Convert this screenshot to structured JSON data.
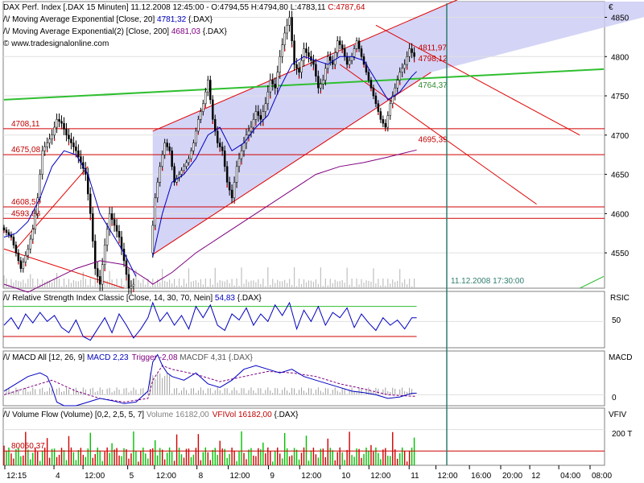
{
  "chart_data": [
    {
      "panel": "price",
      "type": "candlestick",
      "header": {
        "line1_prefix": "DAX Perf. Index [.DAX  15 Minuten] 11.12.2008 12:45:00 - O:4794,55 H:4794,80 L:4783,11 ",
        "line1_close": "C:4787,64",
        "line2_prefix": "/\\/ Moving Average Exponential [Close, 20] ",
        "line2_value": "4781,32",
        "line2_suffix": " {.DAX}",
        "line3_prefix": "/\\/ Moving Average Exponential(2) [Close, 200] ",
        "line3_value": "4681,03",
        "line3_suffix": " {.DAX}",
        "line4": "© www.tradesignalonline.com"
      },
      "currency_symbol": "€",
      "ylim": [
        4505,
        4870
      ],
      "y_ticks": [
        "4550",
        "4600",
        "4650",
        "4700",
        "4750",
        "4800",
        "4850"
      ],
      "x_ticks": [
        "12:15",
        "4",
        "12:00",
        "5",
        "12:00",
        "8",
        "12:00",
        "9",
        "12:00",
        "10",
        "12:00",
        "11",
        "12:00",
        "16:00",
        "20:00",
        "12",
        "04:00",
        "08:00"
      ],
      "horizontal_levels": [
        {
          "value": 4708.11,
          "label": "4708,11"
        },
        {
          "value": 4675.08,
          "label": "4675,08"
        },
        {
          "value": 4608.55,
          "label": "4608,55"
        },
        {
          "value": 4593.88,
          "label": "4593,88"
        }
      ],
      "price_labels": [
        {
          "value": 4811.97,
          "label": "4811,97"
        },
        {
          "value": 4798.12,
          "label": "4798,12"
        },
        {
          "value": 4764.37,
          "label": "4764,37"
        },
        {
          "value": 4695.39,
          "label": "4695,39"
        }
      ],
      "vertical_marker_label": "11.12.2008 17:30:00",
      "close_path": [
        [
          0,
          4582
        ],
        [
          4,
          4570
        ],
        [
          8,
          4530
        ],
        [
          11,
          4555
        ],
        [
          13,
          4580
        ],
        [
          15,
          4620
        ],
        [
          17,
          4680
        ],
        [
          19,
          4690
        ],
        [
          21,
          4700
        ],
        [
          23,
          4720
        ],
        [
          25,
          4715
        ],
        [
          27,
          4700
        ],
        [
          29,
          4690
        ],
        [
          31,
          4680
        ],
        [
          33,
          4665
        ],
        [
          35,
          4650
        ],
        [
          37,
          4600
        ],
        [
          39,
          4530
        ],
        [
          41,
          4510
        ],
        [
          43,
          4560
        ],
        [
          45,
          4600
        ],
        [
          47,
          4585
        ],
        [
          49,
          4570
        ],
        [
          51,
          4540
        ],
        [
          53,
          4505
        ],
        [
          55,
          4510
        ],
        [
          62,
          4550
        ],
        [
          64,
          4620
        ],
        [
          66,
          4660
        ],
        [
          68,
          4690
        ],
        [
          70,
          4680
        ],
        [
          72,
          4640
        ],
        [
          74,
          4650
        ],
        [
          76,
          4660
        ],
        [
          78,
          4670
        ],
        [
          80,
          4690
        ],
        [
          82,
          4720
        ],
        [
          84,
          4740
        ],
        [
          86,
          4770
        ],
        [
          88,
          4720
        ],
        [
          90,
          4690
        ],
        [
          92,
          4680
        ],
        [
          94,
          4640
        ],
        [
          96,
          4620
        ],
        [
          98,
          4660
        ],
        [
          100,
          4680
        ],
        [
          102,
          4700
        ],
        [
          104,
          4710
        ],
        [
          106,
          4730
        ],
        [
          108,
          4720
        ],
        [
          110,
          4740
        ],
        [
          112,
          4770
        ],
        [
          114,
          4760
        ],
        [
          116,
          4800
        ],
        [
          118,
          4830
        ],
        [
          120,
          4850
        ],
        [
          122,
          4790
        ],
        [
          124,
          4780
        ],
        [
          126,
          4810
        ],
        [
          128,
          4800
        ],
        [
          130,
          4790
        ],
        [
          132,
          4760
        ],
        [
          134,
          4770
        ],
        [
          136,
          4800
        ],
        [
          138,
          4790
        ],
        [
          140,
          4820
        ],
        [
          142,
          4810
        ],
        [
          144,
          4790
        ],
        [
          146,
          4800
        ],
        [
          148,
          4820
        ],
        [
          150,
          4800
        ],
        [
          152,
          4780
        ],
        [
          154,
          4760
        ],
        [
          156,
          4740
        ],
        [
          158,
          4720
        ],
        [
          160,
          4710
        ],
        [
          162,
          4740
        ],
        [
          164,
          4760
        ],
        [
          166,
          4780
        ],
        [
          168,
          4790
        ],
        [
          170,
          4810
        ],
        [
          172,
          4800
        ]
      ],
      "ema20_path": [
        [
          0,
          4570
        ],
        [
          5,
          4575
        ],
        [
          10,
          4590
        ],
        [
          15,
          4620
        ],
        [
          20,
          4660
        ],
        [
          25,
          4680
        ],
        [
          30,
          4675
        ],
        [
          35,
          4650
        ],
        [
          40,
          4600
        ],
        [
          45,
          4575
        ],
        [
          50,
          4550
        ],
        [
          55,
          4520
        ],
        [
          62,
          4545
        ],
        [
          66,
          4600
        ],
        [
          70,
          4640
        ],
        [
          75,
          4650
        ],
        [
          80,
          4670
        ],
        [
          85,
          4700
        ],
        [
          90,
          4710
        ],
        [
          95,
          4680
        ],
        [
          100,
          4690
        ],
        [
          105,
          4710
        ],
        [
          110,
          4725
        ],
        [
          115,
          4760
        ],
        [
          120,
          4790
        ],
        [
          125,
          4800
        ],
        [
          130,
          4795
        ],
        [
          135,
          4790
        ],
        [
          140,
          4800
        ],
        [
          145,
          4800
        ],
        [
          150,
          4795
        ],
        [
          155,
          4770
        ],
        [
          160,
          4745
        ],
        [
          165,
          4755
        ],
        [
          170,
          4775
        ],
        [
          172,
          4781
        ]
      ],
      "ema200_path": [
        [
          0,
          4510
        ],
        [
          10,
          4500
        ],
        [
          20,
          4515
        ],
        [
          30,
          4530
        ],
        [
          40,
          4540
        ],
        [
          50,
          4535
        ],
        [
          55,
          4525
        ],
        [
          60,
          4515
        ],
        [
          62,
          4510
        ],
        [
          70,
          4525
        ],
        [
          80,
          4550
        ],
        [
          90,
          4570
        ],
        [
          100,
          4590
        ],
        [
          110,
          4610
        ],
        [
          120,
          4630
        ],
        [
          130,
          4650
        ],
        [
          140,
          4660
        ],
        [
          150,
          4665
        ],
        [
          160,
          4672
        ],
        [
          172,
          4681
        ]
      ],
      "trendlines": [
        {
          "name": "channel-upper",
          "color": "#e00000",
          "points": [
            [
              62,
              4705
            ],
            [
              210,
              4900
            ]
          ]
        },
        {
          "name": "channel-lower",
          "color": "#e00000",
          "points": [
            [
              62,
              4548
            ],
            [
              178,
              4780
            ]
          ]
        },
        {
          "name": "down-line-1",
          "color": "#e00000",
          "points": [
            [
              155,
              4840
            ],
            [
              240,
              4700
            ]
          ]
        },
        {
          "name": "down-line-2",
          "color": "#e00000",
          "points": [
            [
              140,
              4790
            ],
            [
              222,
              4612
            ]
          ]
        },
        {
          "name": "left-line-1",
          "color": "#e00000",
          "points": [
            [
              0,
              4555
            ],
            [
              50,
              4505
            ]
          ]
        },
        {
          "name": "left-line-2",
          "color": "#e00000",
          "points": [
            [
              5,
              4555
            ],
            [
              35,
              4660
            ]
          ]
        },
        {
          "name": "support-green",
          "color": "#2fbf2f",
          "points": [
            [
              0,
              4745
            ],
            [
              250,
              4784
            ]
          ]
        },
        {
          "name": "green-low",
          "color": "#2fbf2f",
          "points": [
            [
              240,
              4505
            ],
            [
              250,
              4520
            ]
          ]
        }
      ],
      "volume_bars_hint": "grey volume bars along bottom of price panel"
    },
    {
      "panel": "rsi",
      "type": "line",
      "header_prefix": "/\\/ Relative Strength Index Classic [Close, 14, 30, 70, Nein] ",
      "header_value": "54,83",
      "header_suffix": " {.DAX}",
      "right_label": "RSIC",
      "y_ticks": [
        "50"
      ],
      "ylim": [
        15,
        90
      ],
      "bands": [
        30,
        70
      ],
      "series": [
        [
          0,
          45
        ],
        [
          3,
          55
        ],
        [
          6,
          40
        ],
        [
          9,
          60
        ],
        [
          12,
          48
        ],
        [
          15,
          62
        ],
        [
          18,
          50
        ],
        [
          21,
          58
        ],
        [
          24,
          42
        ],
        [
          27,
          35
        ],
        [
          30,
          52
        ],
        [
          33,
          30
        ],
        [
          36,
          25
        ],
        [
          39,
          40
        ],
        [
          42,
          55
        ],
        [
          45,
          35
        ],
        [
          48,
          60
        ],
        [
          51,
          45
        ],
        [
          54,
          28
        ],
        [
          57,
          40
        ],
        [
          60,
          55
        ],
        [
          62,
          75
        ],
        [
          65,
          50
        ],
        [
          68,
          62
        ],
        [
          71,
          45
        ],
        [
          74,
          58
        ],
        [
          77,
          40
        ],
        [
          80,
          70
        ],
        [
          83,
          55
        ],
        [
          86,
          72
        ],
        [
          89,
          45
        ],
        [
          92,
          38
        ],
        [
          95,
          60
        ],
        [
          98,
          52
        ],
        [
          101,
          68
        ],
        [
          104,
          45
        ],
        [
          107,
          60
        ],
        [
          110,
          50
        ],
        [
          113,
          72
        ],
        [
          116,
          58
        ],
        [
          119,
          75
        ],
        [
          122,
          40
        ],
        [
          125,
          65
        ],
        [
          128,
          50
        ],
        [
          131,
          70
        ],
        [
          134,
          45
        ],
        [
          137,
          62
        ],
        [
          140,
          55
        ],
        [
          143,
          68
        ],
        [
          146,
          42
        ],
        [
          149,
          60
        ],
        [
          152,
          48
        ],
        [
          155,
          38
        ],
        [
          158,
          55
        ],
        [
          161,
          45
        ],
        [
          164,
          52
        ],
        [
          167,
          40
        ],
        [
          170,
          55
        ],
        [
          172,
          54.83
        ]
      ]
    },
    {
      "panel": "macd",
      "type": "line",
      "header_prefix": "/\\/ MACD All [12, 26, 9] ",
      "header_macd": "MACD 2,23",
      "header_trigger": "Trigger -2,08",
      "header_rest": " MACDF 4,31 {.DAX}",
      "right_label": "MACD",
      "y_ticks": [
        "0"
      ],
      "ylim": [
        -15,
        60
      ],
      "macd_series": [
        [
          0,
          5
        ],
        [
          5,
          15
        ],
        [
          10,
          25
        ],
        [
          15,
          30
        ],
        [
          18,
          25
        ],
        [
          20,
          10
        ],
        [
          22,
          -10
        ],
        [
          25,
          -15
        ],
        [
          30,
          -15
        ],
        [
          35,
          -10
        ],
        [
          40,
          -5
        ],
        [
          45,
          -8
        ],
        [
          50,
          -12
        ],
        [
          55,
          -10
        ],
        [
          60,
          5
        ],
        [
          62,
          45
        ],
        [
          64,
          55
        ],
        [
          66,
          40
        ],
        [
          68,
          30
        ],
        [
          70,
          25
        ],
        [
          75,
          20
        ],
        [
          80,
          30
        ],
        [
          85,
          15
        ],
        [
          90,
          10
        ],
        [
          95,
          20
        ],
        [
          100,
          35
        ],
        [
          105,
          40
        ],
        [
          110,
          35
        ],
        [
          115,
          30
        ],
        [
          120,
          35
        ],
        [
          125,
          25
        ],
        [
          130,
          20
        ],
        [
          135,
          15
        ],
        [
          140,
          10
        ],
        [
          145,
          5
        ],
        [
          150,
          3
        ],
        [
          155,
          0
        ],
        [
          160,
          -5
        ],
        [
          165,
          -3
        ],
        [
          170,
          2
        ],
        [
          172,
          2.23
        ]
      ],
      "trigger_series": [
        [
          0,
          0
        ],
        [
          10,
          10
        ],
        [
          20,
          20
        ],
        [
          30,
          5
        ],
        [
          40,
          -5
        ],
        [
          50,
          -10
        ],
        [
          60,
          -5
        ],
        [
          62,
          20
        ],
        [
          66,
          40
        ],
        [
          70,
          35
        ],
        [
          80,
          28
        ],
        [
          90,
          18
        ],
        [
          100,
          25
        ],
        [
          110,
          32
        ],
        [
          120,
          30
        ],
        [
          130,
          25
        ],
        [
          140,
          15
        ],
        [
          150,
          8
        ],
        [
          160,
          0
        ],
        [
          170,
          -2
        ],
        [
          172,
          -2.08
        ]
      ],
      "histogram_hint": "grey MACD histogram bars"
    },
    {
      "panel": "volume_flow",
      "type": "bar",
      "header_prefix": "/\\/ Volume Flow (Volume) [0,2, 2,5, 5, 7] ",
      "header_volume": "Volume 16182,00",
      "header_vfi": "VFIVol 16182,00",
      "header_suffix": " {.DAX}",
      "right_label": "VFIV",
      "y_ticks": [
        "200 T"
      ],
      "ylim": [
        0,
        320
      ],
      "reference_level_label": "80050,37",
      "reference_level_value": 80.05,
      "bars_hint": "green and red volume bars"
    }
  ]
}
